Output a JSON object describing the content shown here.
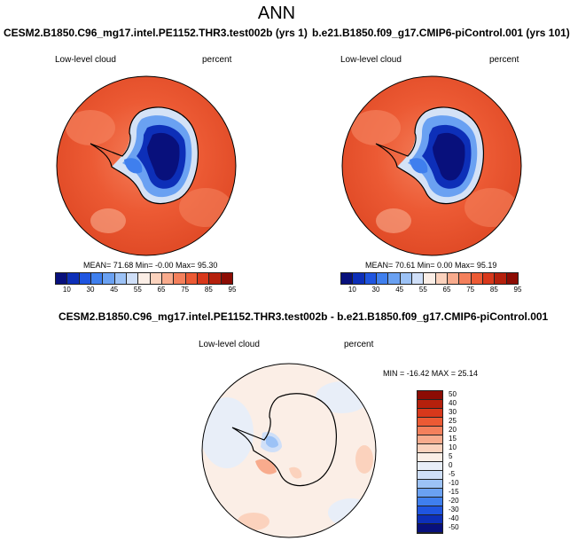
{
  "main_title": "ANN",
  "panels": [
    {
      "case": "CESM2.B1850.C96_mg17.intel.PE1152.THR3.test002b (yrs 1)",
      "variable": "Low-level cloud",
      "units": "percent",
      "stats": {
        "mean": "71.68",
        "min": "-0.00",
        "max": "95.30",
        "text": "MEAN=  71.68  Min=  -0.00  Max=  95.30"
      }
    },
    {
      "case": "b.e21.B1850.f09_g17.CMIP6-piControl.001 (yrs 101)",
      "variable": "Low-level cloud",
      "units": "percent",
      "stats": {
        "mean": "70.61",
        "min": "0.00",
        "max": "95.19",
        "text": "MEAN=  70.61  Min=   0.00  Max=  95.19"
      }
    }
  ],
  "colorbar": {
    "labels": [
      "10",
      "30",
      "45",
      "55",
      "65",
      "75",
      "85",
      "95"
    ],
    "colors": [
      "#08107c",
      "#0d2fb8",
      "#1f55e0",
      "#3f7fee",
      "#6aa1f2",
      "#9cc2f6",
      "#cfdff8",
      "#fbeee6",
      "#fbd2bd",
      "#f8ab8d",
      "#f4805c",
      "#ec5a34",
      "#d8381b",
      "#b5200c",
      "#8c0c04"
    ]
  },
  "diff_panel": {
    "title": "CESM2.B1850.C96_mg17.intel.PE1152.THR3.test002b - b.e21.B1850.f09_g17.CMIP6-piControl.001",
    "variable": "Low-level cloud",
    "units": "percent",
    "minmax_text": "MIN = -16.42  MAX =  25.14",
    "min": -16.42,
    "max": 25.14,
    "colorbar_labels": [
      "50",
      "40",
      "30",
      "25",
      "20",
      "15",
      "10",
      "5",
      "0",
      "-5",
      "-10",
      "-15",
      "-20",
      "-30",
      "-40",
      "-50"
    ],
    "colorbar_colors": [
      "#8c0c04",
      "#b5200c",
      "#d8381b",
      "#ec5a34",
      "#f4805c",
      "#f8ab8d",
      "#fbd2bd",
      "#fbeee6",
      "#e8eef8",
      "#cfdff8",
      "#9cc2f6",
      "#6aa1f2",
      "#3f7fee",
      "#1f55e0",
      "#0d2fb8",
      "#08107c"
    ]
  }
}
